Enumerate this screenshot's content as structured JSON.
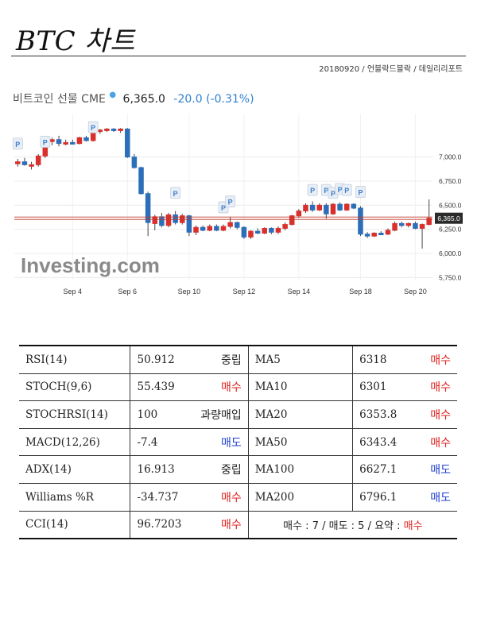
{
  "header": {
    "title": "BTC 차트",
    "byline": "20180920 / 언블락드블락 / 데일리리포트"
  },
  "chart_header": {
    "name": "비트코인 선물 CME",
    "price": "6,365.0",
    "change": "-20.0 (-0.31%)"
  },
  "watermark": "Investing.com",
  "colors": {
    "up": "#d9302c",
    "down": "#2c6fb8",
    "buy": "#e0201e",
    "sell": "#1f3fd1",
    "price_line": "#c0392b"
  },
  "chart_data": {
    "type": "candlestick",
    "y_ticks": [
      "7,000.0",
      "6,750.0",
      "6,500.0",
      "6,250.0",
      "6,000.0",
      "5,750.0"
    ],
    "y_tick_values": [
      7000,
      6750,
      6500,
      6250,
      6000,
      5750
    ],
    "ylim": [
      5720,
      7450
    ],
    "x_labels": [
      "Sep 4",
      "Sep 6",
      "Sep 10",
      "Sep 12",
      "Sep 14",
      "Sep 18",
      "Sep 20"
    ],
    "x_label_index": [
      8,
      16,
      25,
      33,
      41,
      50,
      58
    ],
    "current_price": 6365,
    "current_price_label": "6,365.0",
    "marker_text": "P",
    "markers": [
      {
        "i": 0,
        "y": 7130
      },
      {
        "i": 4,
        "y": 7150
      },
      {
        "i": 11,
        "y": 7300
      },
      {
        "i": 23,
        "y": 6620
      },
      {
        "i": 30,
        "y": 6470
      },
      {
        "i": 31,
        "y": 6530
      },
      {
        "i": 43,
        "y": 6650
      },
      {
        "i": 45,
        "y": 6650
      },
      {
        "i": 46,
        "y": 6620
      },
      {
        "i": 47,
        "y": 6660
      },
      {
        "i": 48,
        "y": 6650
      },
      {
        "i": 50,
        "y": 6630
      }
    ],
    "candles": [
      {
        "o": 6930,
        "h": 6980,
        "l": 6900,
        "c": 6950
      },
      {
        "o": 6950,
        "h": 6990,
        "l": 6910,
        "c": 6920
      },
      {
        "o": 6920,
        "h": 6950,
        "l": 6870,
        "c": 6920
      },
      {
        "o": 6920,
        "h": 7030,
        "l": 6900,
        "c": 7010
      },
      {
        "o": 7010,
        "h": 7180,
        "l": 6990,
        "c": 7160
      },
      {
        "o": 7160,
        "h": 7200,
        "l": 7120,
        "c": 7180
      },
      {
        "o": 7180,
        "h": 7220,
        "l": 7110,
        "c": 7140
      },
      {
        "o": 7140,
        "h": 7180,
        "l": 7120,
        "c": 7150
      },
      {
        "o": 7150,
        "h": 7180,
        "l": 7130,
        "c": 7140
      },
      {
        "o": 7140,
        "h": 7210,
        "l": 7130,
        "c": 7200
      },
      {
        "o": 7200,
        "h": 7220,
        "l": 7160,
        "c": 7170
      },
      {
        "o": 7170,
        "h": 7280,
        "l": 7160,
        "c": 7270
      },
      {
        "o": 7270,
        "h": 7290,
        "l": 7240,
        "c": 7280
      },
      {
        "o": 7280,
        "h": 7300,
        "l": 7260,
        "c": 7290
      },
      {
        "o": 7290,
        "h": 7300,
        "l": 7260,
        "c": 7280
      },
      {
        "o": 7280,
        "h": 7300,
        "l": 7250,
        "c": 7290
      },
      {
        "o": 7290,
        "h": 7300,
        "l": 6990,
        "c": 7000
      },
      {
        "o": 7000,
        "h": 7030,
        "l": 6880,
        "c": 6890
      },
      {
        "o": 6890,
        "h": 6900,
        "l": 6610,
        "c": 6620
      },
      {
        "o": 6620,
        "h": 6640,
        "l": 6180,
        "c": 6320
      },
      {
        "o": 6310,
        "h": 6400,
        "l": 6240,
        "c": 6380
      },
      {
        "o": 6380,
        "h": 6420,
        "l": 6270,
        "c": 6290
      },
      {
        "o": 6290,
        "h": 6420,
        "l": 6270,
        "c": 6400
      },
      {
        "o": 6400,
        "h": 6440,
        "l": 6300,
        "c": 6320
      },
      {
        "o": 6320,
        "h": 6410,
        "l": 6300,
        "c": 6390
      },
      {
        "o": 6390,
        "h": 6400,
        "l": 6180,
        "c": 6220
      },
      {
        "o": 6220,
        "h": 6290,
        "l": 6190,
        "c": 6270
      },
      {
        "o": 6270,
        "h": 6290,
        "l": 6230,
        "c": 6240
      },
      {
        "o": 6240,
        "h": 6300,
        "l": 6230,
        "c": 6280
      },
      {
        "o": 6280,
        "h": 6300,
        "l": 6230,
        "c": 6240
      },
      {
        "o": 6240,
        "h": 6300,
        "l": 6230,
        "c": 6280
      },
      {
        "o": 6280,
        "h": 6380,
        "l": 6260,
        "c": 6320
      },
      {
        "o": 6320,
        "h": 6330,
        "l": 6250,
        "c": 6270
      },
      {
        "o": 6270,
        "h": 6280,
        "l": 6150,
        "c": 6170
      },
      {
        "o": 6170,
        "h": 6240,
        "l": 6150,
        "c": 6230
      },
      {
        "o": 6230,
        "h": 6260,
        "l": 6200,
        "c": 6210
      },
      {
        "o": 6210,
        "h": 6270,
        "l": 6200,
        "c": 6260
      },
      {
        "o": 6260,
        "h": 6270,
        "l": 6200,
        "c": 6220
      },
      {
        "o": 6220,
        "h": 6280,
        "l": 6200,
        "c": 6260
      },
      {
        "o": 6260,
        "h": 6320,
        "l": 6240,
        "c": 6300
      },
      {
        "o": 6300,
        "h": 6400,
        "l": 6290,
        "c": 6390
      },
      {
        "o": 6390,
        "h": 6460,
        "l": 6370,
        "c": 6440
      },
      {
        "o": 6440,
        "h": 6520,
        "l": 6420,
        "c": 6500
      },
      {
        "o": 6500,
        "h": 6540,
        "l": 6430,
        "c": 6450
      },
      {
        "o": 6450,
        "h": 6520,
        "l": 6440,
        "c": 6500
      },
      {
        "o": 6500,
        "h": 6520,
        "l": 6360,
        "c": 6410
      },
      {
        "o": 6410,
        "h": 6520,
        "l": 6400,
        "c": 6510
      },
      {
        "o": 6510,
        "h": 6530,
        "l": 6440,
        "c": 6450
      },
      {
        "o": 6450,
        "h": 6520,
        "l": 6440,
        "c": 6510
      },
      {
        "o": 6510,
        "h": 6520,
        "l": 6460,
        "c": 6470
      },
      {
        "o": 6470,
        "h": 6490,
        "l": 6180,
        "c": 6200
      },
      {
        "o": 6200,
        "h": 6220,
        "l": 6160,
        "c": 6180
      },
      {
        "o": 6180,
        "h": 6220,
        "l": 6170,
        "c": 6210
      },
      {
        "o": 6210,
        "h": 6230,
        "l": 6190,
        "c": 6200
      },
      {
        "o": 6200,
        "h": 6260,
        "l": 6190,
        "c": 6240
      },
      {
        "o": 6240,
        "h": 6330,
        "l": 6230,
        "c": 6310
      },
      {
        "o": 6310,
        "h": 6330,
        "l": 6270,
        "c": 6290
      },
      {
        "o": 6290,
        "h": 6320,
        "l": 6270,
        "c": 6310
      },
      {
        "o": 6310,
        "h": 6330,
        "l": 6250,
        "c": 6260
      },
      {
        "o": 6260,
        "h": 6310,
        "l": 6050,
        "c": 6300
      },
      {
        "o": 6300,
        "h": 6560,
        "l": 6290,
        "c": 6365
      }
    ]
  },
  "indicators": [
    {
      "left_name": "RSI(14)",
      "left_value": "50.912",
      "left_signal": "중립",
      "left_kind": "neutral",
      "right_name": "MA5",
      "right_value": "6318",
      "right_signal": "매수",
      "right_kind": "buy"
    },
    {
      "left_name": "STOCH(9,6)",
      "left_value": "55.439",
      "left_signal": "매수",
      "left_kind": "buy",
      "right_name": "MA10",
      "right_value": "6301",
      "right_signal": "매수",
      "right_kind": "buy"
    },
    {
      "left_name": "STOCHRSI(14)",
      "left_value": "100",
      "left_signal": "과량매입",
      "left_kind": "neutral",
      "right_name": "MA20",
      "right_value": "6353.8",
      "right_signal": "매수",
      "right_kind": "buy"
    },
    {
      "left_name": "MACD(12,26)",
      "left_value": "-7.4",
      "left_signal": "매도",
      "left_kind": "sell",
      "right_name": "MA50",
      "right_value": "6343.4",
      "right_signal": "매수",
      "right_kind": "buy"
    },
    {
      "left_name": "ADX(14)",
      "left_value": "16.913",
      "left_signal": "중립",
      "left_kind": "neutral",
      "right_name": "MA100",
      "right_value": "6627.1",
      "right_signal": "매도",
      "right_kind": "sell"
    },
    {
      "left_name": "Williams %R",
      "left_value": "-34.737",
      "left_signal": "매수",
      "left_kind": "buy",
      "right_name": "MA200",
      "right_value": "6796.1",
      "right_signal": "매도",
      "right_kind": "sell"
    }
  ],
  "last_row": {
    "left_name": "CCI(14)",
    "left_value": "96.7203",
    "left_signal": "매수",
    "left_kind": "buy",
    "summary_prefix": "매수 : 7 / 매도 : 5 / 요약 : ",
    "summary_result": "매수"
  }
}
